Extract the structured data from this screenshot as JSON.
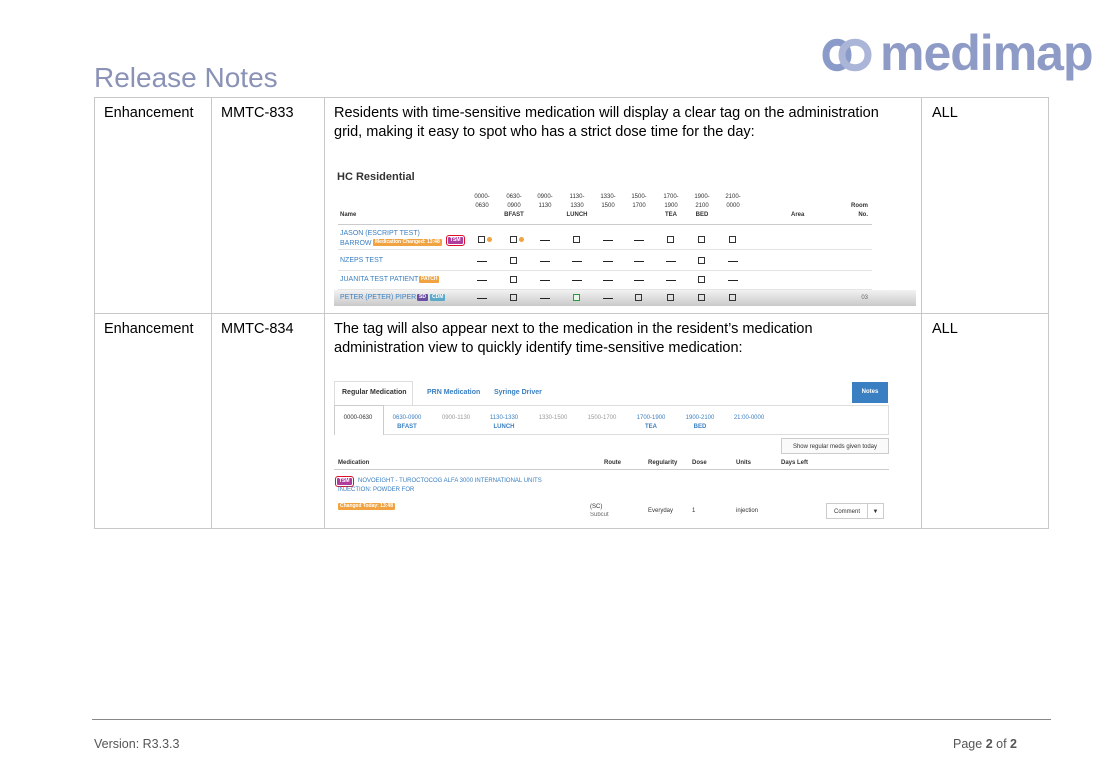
{
  "logo": "medimap",
  "header": {
    "title": "Release Notes"
  },
  "table": {
    "rows": [
      {
        "type": "Enhancement",
        "id": "MMTC-833",
        "description": "Residents with time-sensitive medication will display a clear tag on the administration grid, making it easy to spot who has a strict dose time for the day:",
        "scope": "ALL",
        "screenshot": {
          "title": "HC Residential",
          "columns": [
            {
              "time": [
                "0000-",
                "0630"
              ]
            },
            {
              "time": [
                "0630-",
                "0900"
              ],
              "meal": "BFAST"
            },
            {
              "time": [
                "0900-",
                "1130"
              ]
            },
            {
              "time": [
                "1130-",
                "1330"
              ],
              "meal": "LUNCH"
            },
            {
              "time": [
                "1330-",
                "1500"
              ]
            },
            {
              "time": [
                "1500-",
                "1700"
              ]
            },
            {
              "time": [
                "1700-",
                "1900"
              ],
              "meal": "TEA"
            },
            {
              "time": [
                "1900-",
                "2100"
              ],
              "meal": "BED"
            },
            {
              "time": [
                "2100-",
                "0000"
              ]
            }
          ],
          "name_header": "Name",
          "area_header": "Area",
          "room_header": [
            "Room",
            "No."
          ],
          "residents": [
            {
              "name": [
                "JASON (ESCRIPT TEST)",
                "BARROW"
              ],
              "tags": [
                "Medication Changed: 13:48",
                "TSM"
              ]
            },
            {
              "name": [
                "NZEPS TEST"
              ],
              "tags": []
            },
            {
              "name": [
                "JUANITA TEST PATIENT"
              ],
              "tags": [
                "PATCH"
              ]
            },
            {
              "name": [
                "PETER (PETER) PIPER"
              ],
              "tags": [
                "SD",
                "CDM"
              ],
              "room": "03"
            }
          ]
        }
      },
      {
        "type": "Enhancement",
        "id": "MMTC-834",
        "description": "The tag will also appear next to the medication in the resident’s medication administration view to quickly identify time-sensitive medication:",
        "scope": "ALL",
        "screenshot": {
          "tabs": [
            "Regular Medication",
            "PRN Medication",
            "Syringe Driver"
          ],
          "notes_button": "Notes",
          "times": [
            {
              "time": "0000-0630"
            },
            {
              "time": "0630-0900",
              "meal": "BFAST"
            },
            {
              "time": "0900-1130"
            },
            {
              "time": "1130-1330",
              "meal": "LUNCH"
            },
            {
              "time": "1330-1500"
            },
            {
              "time": "1500-1700"
            },
            {
              "time": "1700-1900",
              "meal": "TEA"
            },
            {
              "time": "1900-2100",
              "meal": "BED"
            },
            {
              "time": "21:00-0000"
            }
          ],
          "show_button": "Show regular meds given today",
          "headers": [
            "Medication",
            "Route",
            "Regularity",
            "Dose",
            "Units",
            "Days Left"
          ],
          "medication": {
            "tag": "TSM",
            "name": [
              "NOVOEIGHT - TUROCTOCOG ALFA 3000 INTERNATIONAL UNITS",
              "INJECTION: POWDER FOR"
            ],
            "changed": "Changed Today: 13:48",
            "route": [
              "(SC)",
              "Subcut"
            ],
            "regularity": "Everyday",
            "dose": "1",
            "units": "injection",
            "comment_button": "Comment",
            "dropdown": "▼"
          }
        }
      }
    ]
  },
  "footer": {
    "version": "Version: R3.3.3",
    "page": {
      "label": "Page",
      "current": "2",
      "separator": "of",
      "total": "2"
    }
  }
}
